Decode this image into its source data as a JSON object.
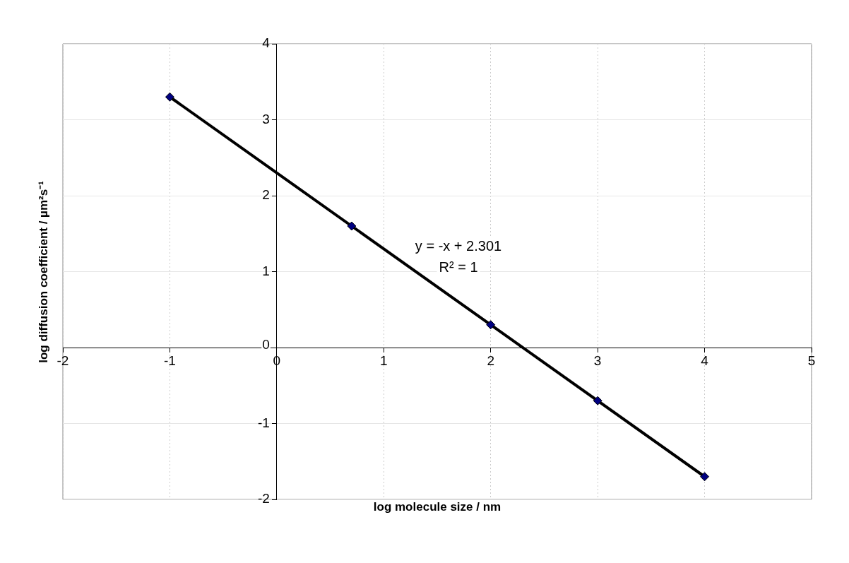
{
  "chart_data": {
    "type": "scatter",
    "xlabel": "log molecule size / nm",
    "ylabel": "log diffusion coefficient / µm²s⁻¹",
    "annotations": [
      "y = -x + 2.301",
      "R² = 1"
    ],
    "series": [
      {
        "type": "scatter",
        "x": [
          -1,
          0.7,
          2,
          3,
          4
        ],
        "values": [
          3.3,
          1.6,
          0.3,
          -0.7,
          -1.7
        ],
        "color": "#000080",
        "marker": "diamond"
      },
      {
        "type": "line",
        "x": [
          -1,
          4
        ],
        "values": [
          3.3,
          -1.7
        ],
        "color": "#000000",
        "marker": "none"
      }
    ],
    "xlim": [
      -2,
      5
    ],
    "ylim": [
      -2,
      4
    ],
    "xticks": [
      -2,
      -1,
      0,
      1,
      2,
      3,
      4,
      5
    ],
    "yticks": [
      -2,
      -1,
      0,
      1,
      2,
      3,
      4
    ],
    "grid": true
  }
}
